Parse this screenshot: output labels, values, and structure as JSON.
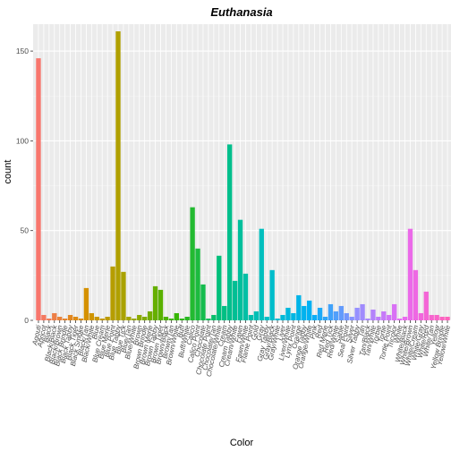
{
  "chart_data": {
    "type": "bar",
    "title": "Euthanasia",
    "xlabel": "Color",
    "ylabel": "count",
    "ylim": [
      0,
      165
    ],
    "yticks": [
      0,
      50,
      100,
      150
    ],
    "grid": true,
    "categories": [
      "Agouti",
      "Apricot",
      "Black",
      "Black/Black",
      "Black/Brown",
      "Black Brindle",
      "Black Tabby",
      "Black Tiger",
      "Black Smoke",
      "Black/Tan",
      "Black/White",
      "Blue",
      "Blue Cream",
      "Blue Merle",
      "Blue Point",
      "Blue Tabby",
      "Blue Tick",
      "Blue/Tan",
      "Blue/White",
      "Brown",
      "Brown Brindle",
      "Brown Merle",
      "Brown Tabby",
      "Brown Tiger",
      "Brown/Black",
      "Brown/Tan",
      "Brown/White",
      "Buff",
      "Buff/White",
      "Calico",
      "Calico Point",
      "Chocolate",
      "Chocolate Point",
      "Chocolate/Tan",
      "Chocolate/White",
      "Cream",
      "Cream Tabby",
      "Cream/White",
      "Fawn",
      "Fawn/White",
      "Flame Point",
      "Gold",
      "Gray",
      "Gray Tabby",
      "Gray/Black",
      "Gray/White",
      "Liver",
      "Liver/White",
      "Lynx Point",
      "Orange",
      "Orange Tabby",
      "Orange/White",
      "Pink",
      "Red",
      "Red Merle",
      "Red Tick",
      "Red/White",
      "Sable",
      "Seal Point",
      "Silver",
      "Silver Tabby",
      "Tan",
      "Tan/Black",
      "Tan/White",
      "Torbie",
      "Tortie",
      "Tortie Point",
      "Tricolor",
      "White",
      "White/Black",
      "White/Brown",
      "White/Cream",
      "White/Gray",
      "White/Red",
      "White/Tan",
      "Yellow",
      "Yellow Brindle",
      "Yellow/White"
    ],
    "values": [
      146,
      3,
      1,
      4,
      2,
      1,
      3,
      2,
      1,
      18,
      4,
      2,
      1,
      2,
      30,
      161,
      27,
      2,
      1,
      3,
      2,
      5,
      19,
      17,
      2,
      1,
      4,
      1,
      2,
      63,
      40,
      20,
      1,
      3,
      36,
      8,
      98,
      22,
      56,
      26,
      3,
      5,
      51,
      2,
      28,
      1,
      3,
      7,
      4,
      14,
      8,
      11,
      3,
      7,
      2,
      9,
      5,
      8,
      4,
      2,
      7,
      9,
      1,
      6,
      2,
      5,
      3,
      9,
      1,
      2,
      51,
      28,
      4,
      16,
      3,
      3,
      2,
      2
    ],
    "colors": [
      "#f8766d",
      "#d89000",
      "#a3a500",
      "#39b600",
      "#00bf7d",
      "#00bfc4",
      "#00b0f6",
      "#9590ff",
      "#e76bf3",
      "#ff62bc"
    ]
  }
}
